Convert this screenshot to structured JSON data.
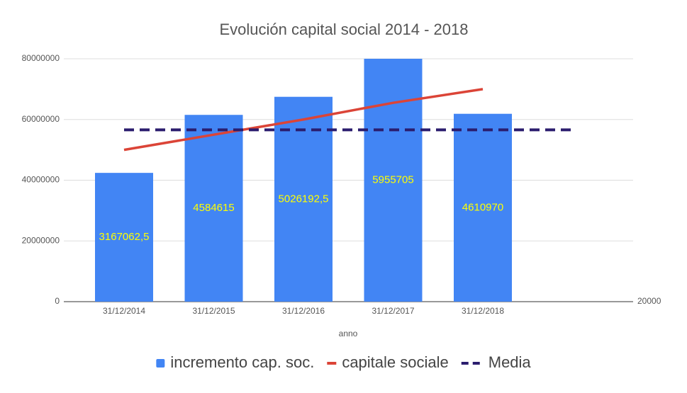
{
  "chart_data": {
    "type": "combo",
    "title": "Evolución capital social 2014 - 2018",
    "x_label": "anno",
    "categories": [
      "31/12/2014",
      "31/12/2015",
      "31/12/2016",
      "31/12/2017",
      "31/12/2018",
      null
    ],
    "series": [
      {
        "name": "incremento cap. soc.",
        "type": "bar",
        "axis": "y2",
        "color": "#4285f4",
        "values": [
          3167062.5,
          4584615,
          5026192.5,
          5955705,
          4610970,
          null
        ],
        "value_labels": [
          "3167062,5",
          "4584615",
          "5026192,5",
          "5955705",
          "4610970",
          null
        ],
        "label_color": "#ffff00"
      },
      {
        "name": "capitale sociale",
        "type": "line",
        "color": "#db4437",
        "values": [
          50000000,
          55000000,
          60000000,
          65500000,
          70000000,
          null
        ]
      },
      {
        "name": "Media",
        "type": "line",
        "dashed": true,
        "color": "#2b1d6e",
        "values": [
          56600000,
          56600000,
          56600000,
          56600000,
          56600000,
          56600000
        ]
      }
    ],
    "ylim": [
      0,
      80000000
    ],
    "yticks": [
      0,
      20000000,
      40000000,
      60000000,
      80000000
    ],
    "y2lim": [
      20000,
      5955705
    ],
    "y2ticks": [
      20000
    ],
    "grid": true,
    "legend": "bottom"
  }
}
